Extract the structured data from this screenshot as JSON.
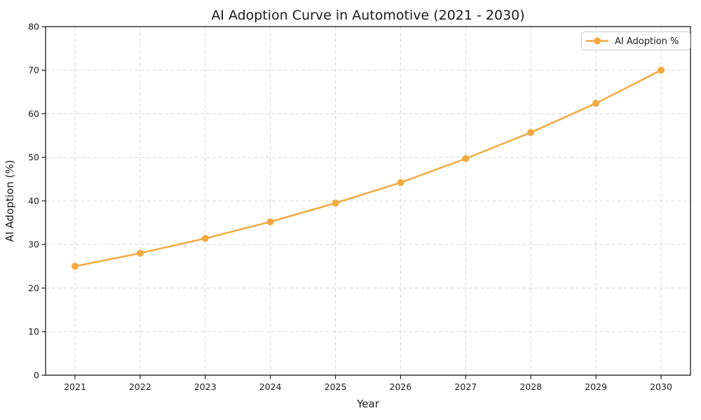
{
  "chart_data": {
    "type": "line",
    "title": "AI Adoption Curve in Automotive (2021 - 2030)",
    "xlabel": "Year",
    "ylabel": "AI Adoption (%)",
    "categories": [
      "2021",
      "2022",
      "2023",
      "2024",
      "2025",
      "2026",
      "2027",
      "2028",
      "2029",
      "2030"
    ],
    "series": [
      {
        "name": "AI Adoption %",
        "color": "#F2A93F",
        "marker": "circle",
        "values": [
          25.0,
          28.0,
          31.4,
          35.2,
          39.5,
          44.2,
          49.7,
          55.7,
          62.4,
          70.0
        ]
      }
    ],
    "ylim": [
      0,
      80
    ],
    "yticks": [
      0,
      10,
      20,
      30,
      40,
      50,
      60,
      70,
      80
    ],
    "grid": "dashed",
    "legend_position": "top-right"
  },
  "colors": {
    "background": "#ffffff",
    "grid": "#d8d8d8",
    "spine": "#1a1a1a",
    "tick": "#1a1a1a",
    "text": "#1a1a1a",
    "legend_border": "#cccccc",
    "legend_fill": "#ffffff"
  }
}
